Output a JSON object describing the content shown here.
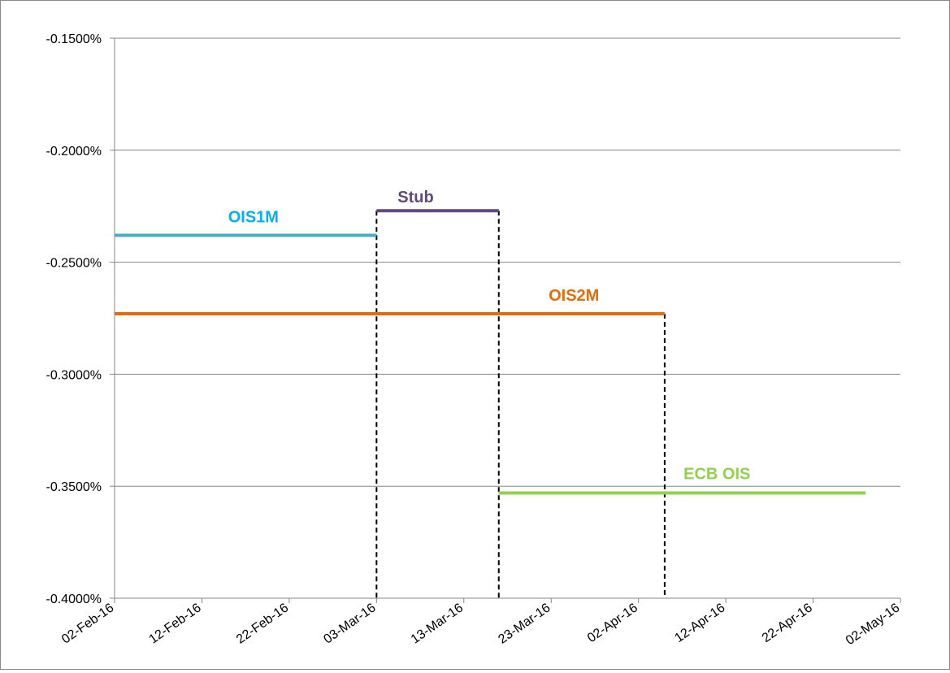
{
  "chart_data": {
    "type": "line",
    "title": "",
    "xlabel": "",
    "ylabel": "",
    "x_axis": {
      "type": "date",
      "min": "2016-02-02",
      "max": "2016-05-02",
      "tick_labels": [
        "02-Feb-16",
        "12-Feb-16",
        "22-Feb-16",
        "03-Mar-16",
        "13-Mar-16",
        "23-Mar-16",
        "02-Apr-16",
        "12-Apr-16",
        "22-Apr-16",
        "02-May-16"
      ],
      "tick_dates": [
        "2016-02-02",
        "2016-02-12",
        "2016-02-22",
        "2016-03-03",
        "2016-03-13",
        "2016-03-23",
        "2016-04-02",
        "2016-04-12",
        "2016-04-22",
        "2016-05-02"
      ]
    },
    "y_axis": {
      "min": -0.004,
      "max": -0.0015,
      "tick_labels": [
        "-0.1500%",
        "-0.2000%",
        "-0.2500%",
        "-0.3000%",
        "-0.3500%",
        "-0.4000%"
      ],
      "tick_values": [
        -0.0015,
        -0.002,
        -0.0025,
        -0.003,
        -0.0035,
        -0.004
      ]
    },
    "grid": "horizontal",
    "series": [
      {
        "name": "OIS1M",
        "color": "#4BACC6",
        "label_color": "#00B0F0",
        "x": [
          "2016-02-02",
          "2016-03-03"
        ],
        "y": [
          -0.00238,
          -0.00238
        ]
      },
      {
        "name": "Stub",
        "color": "#604A7B",
        "label_color": "#604A7B",
        "x": [
          "2016-03-03",
          "2016-03-17"
        ],
        "y": [
          -0.00227,
          -0.00227
        ]
      },
      {
        "name": "OIS2M",
        "color": "#E46C0A",
        "label_color": "#E46C0A",
        "x": [
          "2016-02-02",
          "2016-04-05"
        ],
        "y": [
          -0.00273,
          -0.00273
        ]
      },
      {
        "name": "ECB OIS",
        "color": "#92D050",
        "label_color": "#92D050",
        "x": [
          "2016-03-17",
          "2016-04-28"
        ],
        "y": [
          -0.00353,
          -0.00353
        ]
      }
    ],
    "reference_lines": [
      {
        "x": "2016-03-03",
        "y_top": -0.00227,
        "style": "dashed",
        "color": "#000000"
      },
      {
        "x": "2016-03-17",
        "y_top": -0.00227,
        "style": "dashed",
        "color": "#000000"
      },
      {
        "x": "2016-04-05",
        "y_top": -0.00273,
        "style": "dashed",
        "color": "#000000"
      }
    ]
  }
}
